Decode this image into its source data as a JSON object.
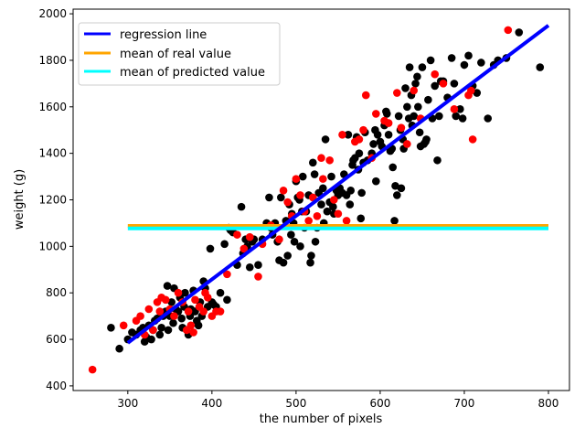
{
  "chart_data": {
    "type": "scatter",
    "xlabel": "the number of pixels",
    "ylabel": "weight (g)",
    "xlim": [
      235,
      825
    ],
    "ylim": [
      380,
      2020
    ],
    "xticks": [
      300,
      400,
      500,
      600,
      700,
      800
    ],
    "yticks": [
      400,
      600,
      800,
      1000,
      1200,
      1400,
      1600,
      1800,
      2000
    ],
    "grid": false,
    "legend_position": "top-left",
    "legend": [
      {
        "label": "regression line",
        "color": "#0000ff"
      },
      {
        "label": "mean of real value",
        "color": "#ffa500"
      },
      {
        "label": "mean of predicted value",
        "color": "#00ffff"
      }
    ],
    "lines": [
      {
        "name": "regression line",
        "color": "#0000ff",
        "x": [
          300,
          800
        ],
        "y": [
          585,
          1950
        ]
      },
      {
        "name": "mean of real value",
        "color": "#ffa500",
        "x": [
          300,
          800
        ],
        "y": [
          1088,
          1088
        ]
      },
      {
        "name": "mean of predicted value",
        "color": "#00ffff",
        "x": [
          300,
          800
        ],
        "y": [
          1077,
          1077
        ]
      }
    ],
    "scatter_series": [
      {
        "color": "#000000",
        "points": [
          [
            280,
            650
          ],
          [
            290,
            560
          ],
          [
            300,
            600
          ],
          [
            305,
            630
          ],
          [
            310,
            620
          ],
          [
            315,
            640
          ],
          [
            318,
            650
          ],
          [
            320,
            590
          ],
          [
            322,
            610
          ],
          [
            325,
            660
          ],
          [
            328,
            600
          ],
          [
            330,
            640
          ],
          [
            332,
            680
          ],
          [
            335,
            690
          ],
          [
            338,
            620
          ],
          [
            340,
            650
          ],
          [
            342,
            700
          ],
          [
            345,
            720
          ],
          [
            347,
            830
          ],
          [
            348,
            640
          ],
          [
            350,
            700
          ],
          [
            352,
            760
          ],
          [
            354,
            670
          ],
          [
            355,
            820
          ],
          [
            357,
            730
          ],
          [
            360,
            720
          ],
          [
            362,
            780
          ],
          [
            364,
            690
          ],
          [
            365,
            650
          ],
          [
            367,
            740
          ],
          [
            368,
            800
          ],
          [
            370,
            640
          ],
          [
            372,
            620
          ],
          [
            374,
            700
          ],
          [
            375,
            730
          ],
          [
            378,
            810
          ],
          [
            380,
            720
          ],
          [
            382,
            680
          ],
          [
            384,
            660
          ],
          [
            386,
            760
          ],
          [
            388,
            700
          ],
          [
            390,
            850
          ],
          [
            392,
            820
          ],
          [
            395,
            740
          ],
          [
            398,
            990
          ],
          [
            400,
            760
          ],
          [
            402,
            750
          ],
          [
            405,
            740
          ],
          [
            410,
            800
          ],
          [
            415,
            1010
          ],
          [
            418,
            770
          ],
          [
            420,
            1080
          ],
          [
            422,
            1070
          ],
          [
            425,
            1060
          ],
          [
            430,
            920
          ],
          [
            435,
            1170
          ],
          [
            437,
            970
          ],
          [
            440,
            1030
          ],
          [
            442,
            1000
          ],
          [
            445,
            910
          ],
          [
            448,
            1020
          ],
          [
            450,
            1030
          ],
          [
            455,
            920
          ],
          [
            460,
            1030
          ],
          [
            465,
            1100
          ],
          [
            468,
            1210
          ],
          [
            470,
            1080
          ],
          [
            472,
            1050
          ],
          [
            475,
            1100
          ],
          [
            478,
            1020
          ],
          [
            480,
            940
          ],
          [
            482,
            1210
          ],
          [
            485,
            930
          ],
          [
            488,
            1110
          ],
          [
            490,
            960
          ],
          [
            492,
            1180
          ],
          [
            494,
            1050
          ],
          [
            495,
            1140
          ],
          [
            497,
            1100
          ],
          [
            498,
            1020
          ],
          [
            500,
            1280
          ],
          [
            502,
            1210
          ],
          [
            504,
            1200
          ],
          [
            505,
            1000
          ],
          [
            507,
            1150
          ],
          [
            508,
            1300
          ],
          [
            510,
            1080
          ],
          [
            512,
            1150
          ],
          [
            515,
            1220
          ],
          [
            517,
            930
          ],
          [
            518,
            960
          ],
          [
            520,
            1360
          ],
          [
            522,
            1310
          ],
          [
            523,
            1020
          ],
          [
            525,
            1080
          ],
          [
            527,
            1230
          ],
          [
            530,
            1180
          ],
          [
            532,
            1250
          ],
          [
            533,
            1100
          ],
          [
            535,
            1460
          ],
          [
            537,
            1150
          ],
          [
            540,
            1190
          ],
          [
            542,
            1300
          ],
          [
            544,
            1170
          ],
          [
            545,
            1140
          ],
          [
            548,
            1240
          ],
          [
            550,
            1220
          ],
          [
            552,
            1250
          ],
          [
            555,
            1230
          ],
          [
            557,
            1310
          ],
          [
            560,
            1220
          ],
          [
            562,
            1480
          ],
          [
            564,
            1180
          ],
          [
            565,
            1240
          ],
          [
            567,
            1350
          ],
          [
            568,
            1370
          ],
          [
            570,
            1380
          ],
          [
            572,
            1470
          ],
          [
            574,
            1330
          ],
          [
            575,
            1400
          ],
          [
            577,
            1120
          ],
          [
            578,
            1230
          ],
          [
            580,
            1360
          ],
          [
            582,
            1490
          ],
          [
            585,
            1370
          ],
          [
            590,
            1400
          ],
          [
            592,
            1440
          ],
          [
            594,
            1500
          ],
          [
            595,
            1280
          ],
          [
            597,
            1480
          ],
          [
            600,
            1450
          ],
          [
            602,
            1430
          ],
          [
            605,
            1520
          ],
          [
            607,
            1580
          ],
          [
            608,
            1570
          ],
          [
            610,
            1480
          ],
          [
            612,
            1410
          ],
          [
            614,
            1420
          ],
          [
            615,
            1340
          ],
          [
            617,
            1110
          ],
          [
            618,
            1260
          ],
          [
            620,
            1220
          ],
          [
            622,
            1560
          ],
          [
            624,
            1500
          ],
          [
            625,
            1250
          ],
          [
            627,
            1460
          ],
          [
            628,
            1420
          ],
          [
            630,
            1680
          ],
          [
            632,
            1600
          ],
          [
            634,
            1550
          ],
          [
            635,
            1770
          ],
          [
            637,
            1650
          ],
          [
            638,
            1520
          ],
          [
            640,
            1560
          ],
          [
            642,
            1700
          ],
          [
            644,
            1730
          ],
          [
            645,
            1600
          ],
          [
            647,
            1490
          ],
          [
            648,
            1430
          ],
          [
            650,
            1770
          ],
          [
            652,
            1440
          ],
          [
            654,
            1450
          ],
          [
            655,
            1460
          ],
          [
            657,
            1630
          ],
          [
            660,
            1800
          ],
          [
            662,
            1550
          ],
          [
            665,
            1690
          ],
          [
            668,
            1370
          ],
          [
            670,
            1560
          ],
          [
            672,
            1710
          ],
          [
            675,
            1710
          ],
          [
            680,
            1640
          ],
          [
            685,
            1810
          ],
          [
            688,
            1700
          ],
          [
            690,
            1560
          ],
          [
            695,
            1590
          ],
          [
            698,
            1550
          ],
          [
            700,
            1780
          ],
          [
            705,
            1820
          ],
          [
            710,
            1690
          ],
          [
            715,
            1660
          ],
          [
            720,
            1790
          ],
          [
            728,
            1550
          ],
          [
            735,
            1780
          ],
          [
            740,
            1800
          ],
          [
            750,
            1810
          ],
          [
            765,
            1920
          ],
          [
            790,
            1770
          ]
        ]
      },
      {
        "color": "#ff0000",
        "points": [
          [
            258,
            470
          ],
          [
            295,
            660
          ],
          [
            310,
            680
          ],
          [
            315,
            700
          ],
          [
            320,
            620
          ],
          [
            325,
            730
          ],
          [
            330,
            640
          ],
          [
            335,
            760
          ],
          [
            338,
            720
          ],
          [
            340,
            780
          ],
          [
            345,
            770
          ],
          [
            350,
            730
          ],
          [
            355,
            700
          ],
          [
            360,
            800
          ],
          [
            365,
            760
          ],
          [
            370,
            640
          ],
          [
            372,
            720
          ],
          [
            375,
            660
          ],
          [
            378,
            630
          ],
          [
            380,
            770
          ],
          [
            385,
            740
          ],
          [
            390,
            720
          ],
          [
            392,
            800
          ],
          [
            395,
            780
          ],
          [
            400,
            700
          ],
          [
            405,
            720
          ],
          [
            410,
            720
          ],
          [
            418,
            880
          ],
          [
            430,
            1050
          ],
          [
            438,
            990
          ],
          [
            445,
            1040
          ],
          [
            455,
            870
          ],
          [
            460,
            1010
          ],
          [
            470,
            1090
          ],
          [
            480,
            1030
          ],
          [
            485,
            1240
          ],
          [
            490,
            1190
          ],
          [
            495,
            1130
          ],
          [
            500,
            1290
          ],
          [
            505,
            1220
          ],
          [
            510,
            1150
          ],
          [
            515,
            1110
          ],
          [
            520,
            1210
          ],
          [
            525,
            1130
          ],
          [
            530,
            1380
          ],
          [
            532,
            1290
          ],
          [
            540,
            1370
          ],
          [
            545,
            1200
          ],
          [
            550,
            1140
          ],
          [
            555,
            1480
          ],
          [
            560,
            1110
          ],
          [
            570,
            1450
          ],
          [
            575,
            1460
          ],
          [
            580,
            1500
          ],
          [
            583,
            1650
          ],
          [
            590,
            1380
          ],
          [
            595,
            1570
          ],
          [
            605,
            1540
          ],
          [
            610,
            1530
          ],
          [
            620,
            1660
          ],
          [
            625,
            1510
          ],
          [
            632,
            1440
          ],
          [
            640,
            1670
          ],
          [
            648,
            1550
          ],
          [
            665,
            1740
          ],
          [
            675,
            1700
          ],
          [
            688,
            1590
          ],
          [
            705,
            1650
          ],
          [
            708,
            1670
          ],
          [
            710,
            1460
          ],
          [
            752,
            1930
          ]
        ]
      }
    ]
  }
}
